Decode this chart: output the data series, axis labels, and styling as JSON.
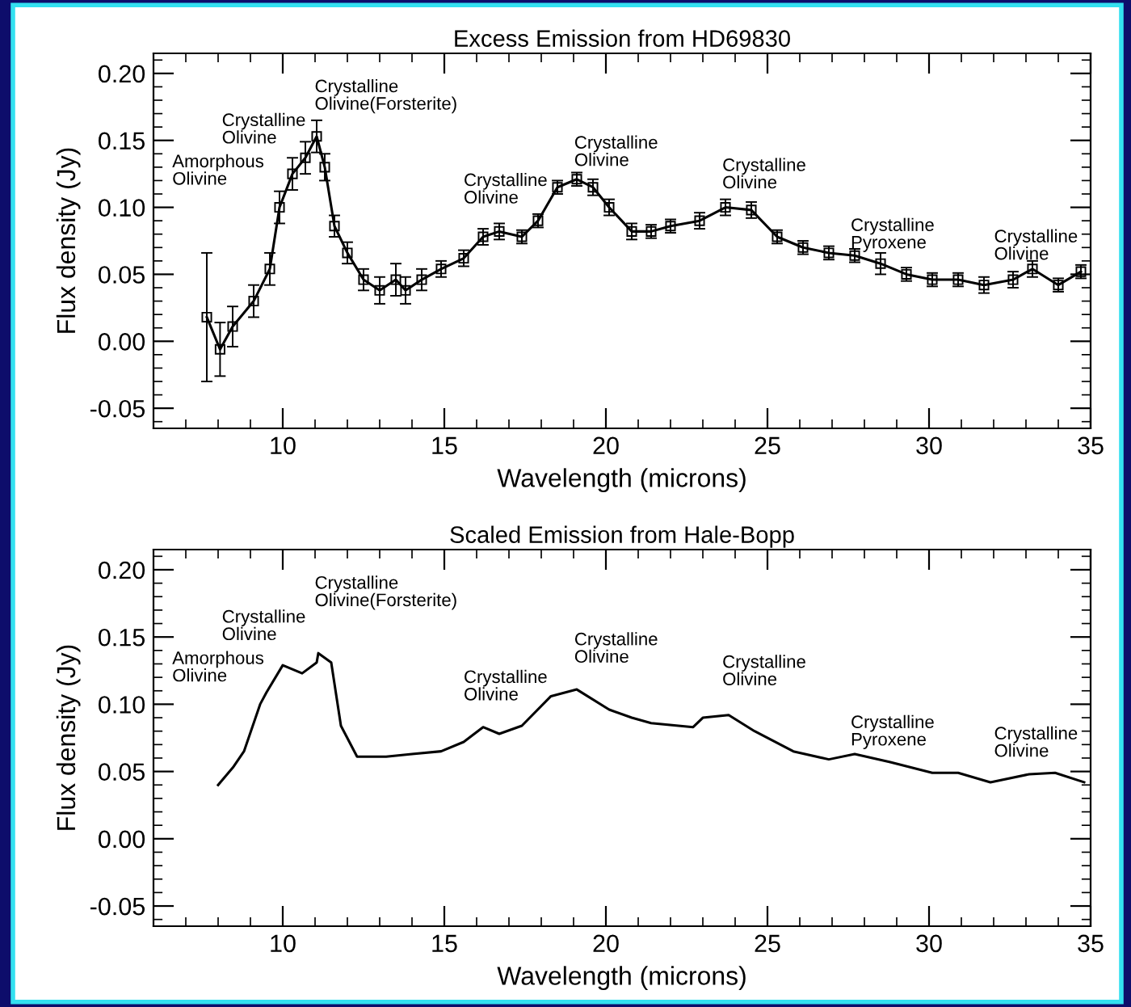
{
  "chart_data": [
    {
      "type": "line",
      "title": "Excess Emission from HD69830",
      "xlabel": "Wavelength (microns)",
      "ylabel": "Flux density (Jy)",
      "x": [
        7.65,
        8.06,
        8.45,
        9.1,
        9.6,
        9.9,
        10.3,
        10.7,
        11.05,
        11.3,
        11.6,
        12.0,
        12.5,
        13.0,
        13.5,
        13.8,
        14.3,
        14.9,
        15.6,
        16.2,
        16.7,
        17.4,
        17.9,
        18.5,
        19.1,
        19.6,
        20.1,
        20.8,
        21.4,
        22.0,
        22.9,
        23.7,
        24.5,
        25.3,
        26.1,
        26.9,
        27.7,
        28.5,
        29.3,
        30.1,
        30.9,
        31.7,
        32.6,
        33.2,
        34.0,
        34.7
      ],
      "series": [
        {
          "color": "#000000",
          "values": [
            0.018,
            -0.006,
            0.011,
            0.03,
            0.054,
            0.1,
            0.125,
            0.137,
            0.153,
            0.13,
            0.086,
            0.066,
            0.046,
            0.038,
            0.046,
            0.038,
            0.046,
            0.054,
            0.062,
            0.078,
            0.082,
            0.078,
            0.09,
            0.115,
            0.121,
            0.115,
            0.1,
            0.082,
            0.082,
            0.086,
            0.09,
            0.1,
            0.098,
            0.078,
            0.07,
            0.066,
            0.064,
            0.058,
            0.05,
            0.046,
            0.046,
            0.042,
            0.046,
            0.054,
            0.042,
            0.052
          ],
          "errors": [
            0.048,
            0.02,
            0.015,
            0.012,
            0.012,
            0.012,
            0.012,
            0.012,
            0.012,
            0.01,
            0.008,
            0.008,
            0.008,
            0.01,
            0.012,
            0.01,
            0.008,
            0.006,
            0.006,
            0.006,
            0.006,
            0.005,
            0.005,
            0.005,
            0.005,
            0.006,
            0.006,
            0.006,
            0.005,
            0.005,
            0.006,
            0.006,
            0.006,
            0.005,
            0.005,
            0.005,
            0.005,
            0.008,
            0.005,
            0.005,
            0.005,
            0.006,
            0.006,
            0.006,
            0.005,
            0.005
          ]
        }
      ],
      "marker": "square",
      "xlim": [
        6,
        35
      ],
      "ylim": [
        -0.065,
        0.215
      ],
      "xticks": [
        10,
        15,
        20,
        25,
        30,
        35
      ],
      "yticks": [
        {
          "value": -0.05,
          "label": "-0.05"
        },
        {
          "value": 0,
          "label": "0.00"
        },
        {
          "value": 0.05,
          "label": "0.05"
        },
        {
          "value": 0.1,
          "label": "0.10"
        },
        {
          "value": 0.15,
          "label": "0.15"
        },
        {
          "value": 0.2,
          "label": "0.20"
        }
      ],
      "annotations": [
        "Amorphous\nOlivine",
        "Crystalline\nOlivine",
        "Crystalline\nOlivine(Forsterite)",
        "Crystalline\nOlivine",
        "Crystalline\nOlivine",
        "Crystalline\nOlivine",
        "Crystalline\nPyroxene",
        "Crystalline\nOlivine"
      ]
    },
    {
      "type": "line",
      "title": "Scaled Emission from Hale-Bopp",
      "xlabel": "Wavelength (microns)",
      "ylabel": "Flux density (Jy)",
      "x": [
        8.0,
        8.46,
        8.8,
        9.3,
        9.5,
        10.0,
        10.6,
        11.05,
        11.1,
        11.5,
        11.8,
        12.3,
        13.2,
        14.0,
        14.9,
        15.6,
        16.2,
        16.7,
        17.4,
        18.3,
        19.1,
        20.1,
        20.8,
        21.4,
        22.7,
        23.0,
        23.8,
        24.6,
        25.8,
        26.9,
        27.7,
        28.8,
        30.1,
        30.9,
        31.9,
        33.1,
        33.9,
        34.8
      ],
      "series": [
        {
          "color": "#000000",
          "values": [
            0.04,
            0.053,
            0.065,
            0.1,
            0.109,
            0.129,
            0.123,
            0.131,
            0.138,
            0.131,
            0.084,
            0.061,
            0.061,
            0.063,
            0.065,
            0.072,
            0.083,
            0.078,
            0.084,
            0.106,
            0.111,
            0.096,
            0.09,
            0.086,
            0.083,
            0.09,
            0.092,
            0.08,
            0.065,
            0.059,
            0.063,
            0.057,
            0.049,
            0.049,
            0.042,
            0.048,
            0.049,
            0.042
          ]
        }
      ],
      "xlim": [
        6,
        35
      ],
      "ylim": [
        -0.065,
        0.215
      ],
      "xticks": [
        10,
        15,
        20,
        25,
        30,
        35
      ],
      "yticks": [
        {
          "value": -0.05,
          "label": "-0.05"
        },
        {
          "value": 0,
          "label": "0.00"
        },
        {
          "value": 0.05,
          "label": "0.05"
        },
        {
          "value": 0.1,
          "label": "0.10"
        },
        {
          "value": 0.15,
          "label": "0.15"
        },
        {
          "value": 0.2,
          "label": "0.20"
        }
      ],
      "annotations": [
        "Amorphous\nOlivine",
        "Crystalline\nOlivine",
        "Crystalline\nOlivine(Forsterite)",
        "Crystalline\nOlivine",
        "Crystalline\nOlivine",
        "Crystalline\nOlivine",
        "Crystalline\nPyroxene",
        "Crystalline\nOlivine"
      ]
    }
  ]
}
